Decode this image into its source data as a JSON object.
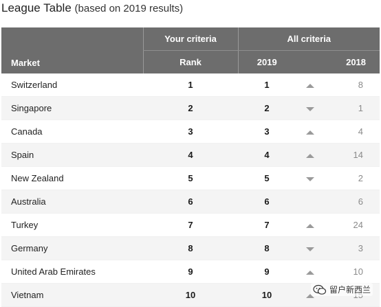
{
  "title": {
    "main": "League Table",
    "sub": "(based on 2019 results)"
  },
  "headers": {
    "your_criteria": "Your criteria",
    "all_criteria": "All criteria",
    "market": "Market",
    "rank": "Rank",
    "year_2019": "2019",
    "year_2018": "2018"
  },
  "colors": {
    "header_bg": "#6d6d6d",
    "arrow": "#9a9a9a",
    "stripe": "#f4f4f4"
  },
  "rows": [
    {
      "market": "Switzerland",
      "rank": "1",
      "r2019": "1",
      "trend": "up",
      "r2018": "8"
    },
    {
      "market": "Singapore",
      "rank": "2",
      "r2019": "2",
      "trend": "down",
      "r2018": "1"
    },
    {
      "market": "Canada",
      "rank": "3",
      "r2019": "3",
      "trend": "up",
      "r2018": "4"
    },
    {
      "market": "Spain",
      "rank": "4",
      "r2019": "4",
      "trend": "up",
      "r2018": "14"
    },
    {
      "market": "New Zealand",
      "rank": "5",
      "r2019": "5",
      "trend": "down",
      "r2018": "2"
    },
    {
      "market": "Australia",
      "rank": "6",
      "r2019": "6",
      "trend": "none",
      "r2018": "6"
    },
    {
      "market": "Turkey",
      "rank": "7",
      "r2019": "7",
      "trend": "up",
      "r2018": "24"
    },
    {
      "market": "Germany",
      "rank": "8",
      "r2019": "8",
      "trend": "down",
      "r2018": "3"
    },
    {
      "market": "United Arab Emirates",
      "rank": "9",
      "r2019": "9",
      "trend": "up",
      "r2018": "10"
    },
    {
      "market": "Vietnam",
      "rank": "10",
      "r2019": "10",
      "trend": "up",
      "r2018": "15"
    }
  ],
  "watermark": {
    "icon": "wechat-icon",
    "text": "留户新西兰"
  }
}
